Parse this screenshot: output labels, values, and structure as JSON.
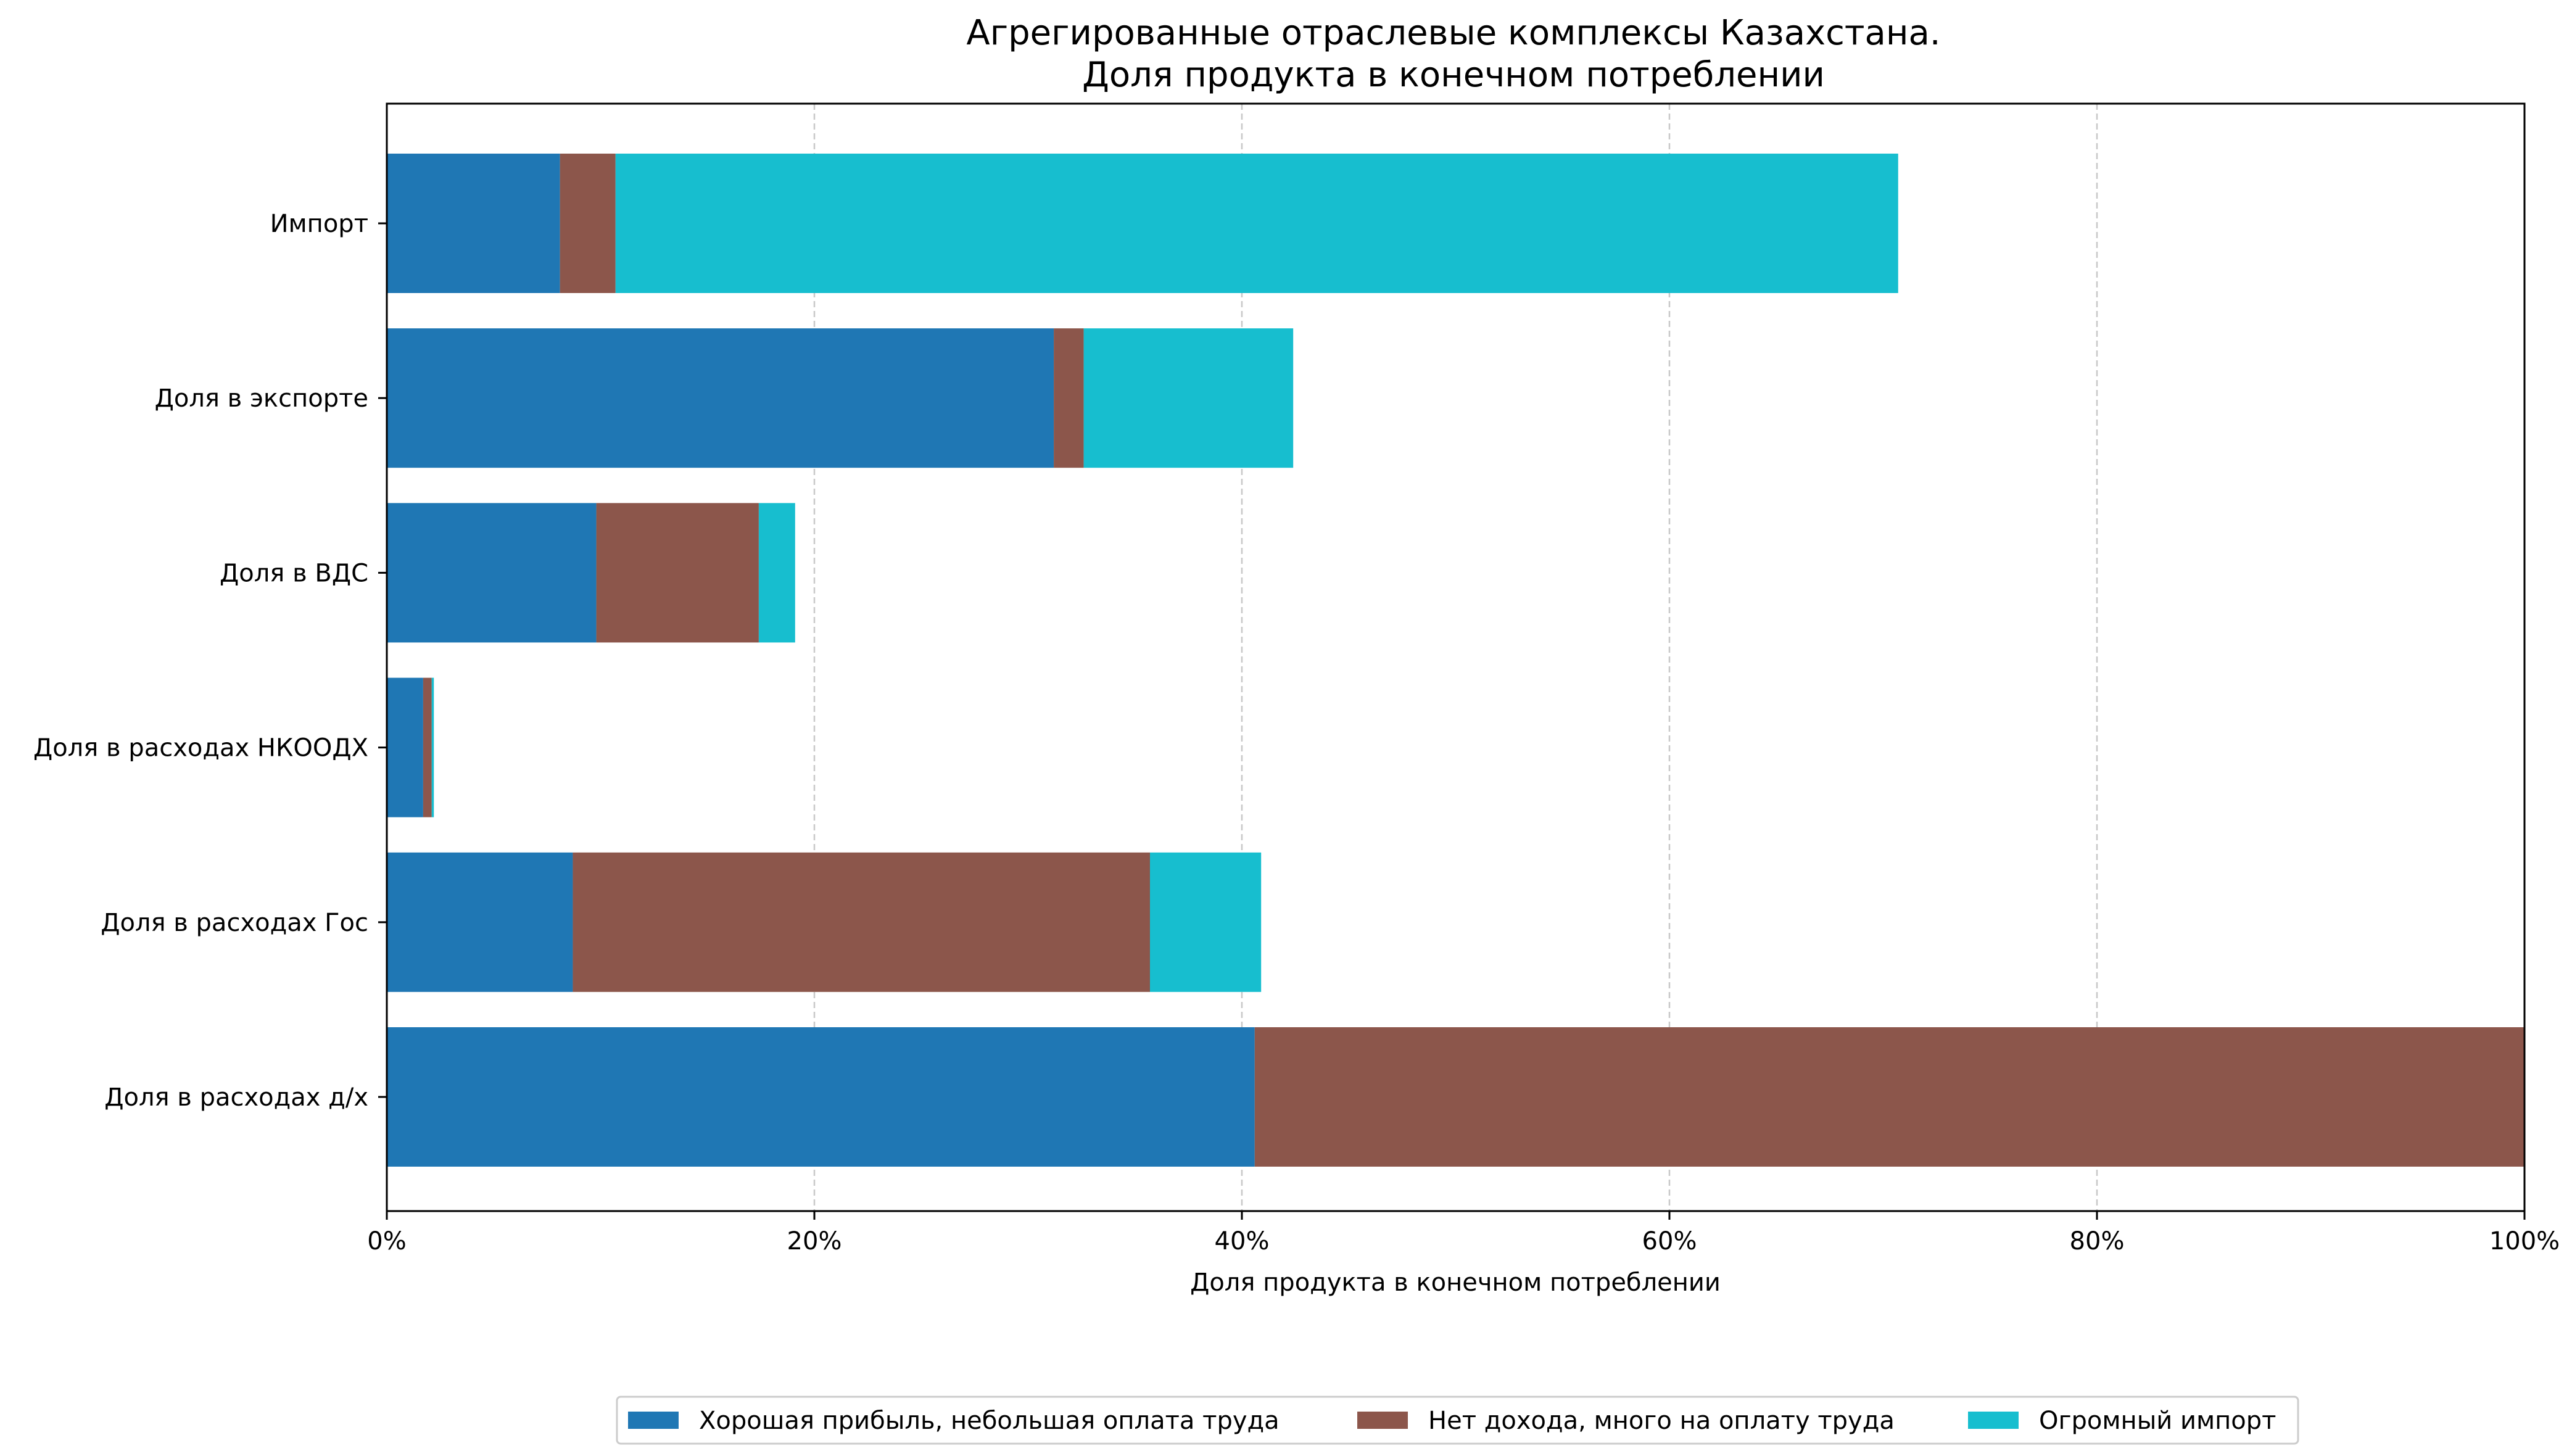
{
  "chart_data": {
    "type": "bar",
    "orientation": "horizontal",
    "stacked": true,
    "title_lines": [
      "Агрегированные отраслевые комплексы Казахстана.",
      "Доля продукта в конечном потреблении"
    ],
    "xlabel": "Доля продукта в конечном потреблении",
    "ylabel": "",
    "xlim": [
      0,
      100
    ],
    "x_ticks": [
      0,
      20,
      40,
      60,
      80,
      100
    ],
    "x_tick_labels": [
      "0%",
      "20%",
      "40%",
      "60%",
      "80%",
      "100%"
    ],
    "grid": "vertical dashed",
    "legend_position": "bottom-center",
    "categories": [
      "Импорт",
      "Доля в экспорте",
      "Доля в ВДС",
      "Доля в расходах НКООДХ",
      "Доля в расходах Гос",
      "Доля в расходах д/х"
    ],
    "series": [
      {
        "name": "Хорошая прибыль, небольшая оплата труда",
        "color": "#1f77b4",
        "values": [
          8.1,
          31.2,
          9.8,
          1.7,
          8.7,
          40.6
        ]
      },
      {
        "name": "Нет дохода, много на оплату труда",
        "color": "#8c564b",
        "values": [
          2.6,
          1.4,
          7.6,
          0.4,
          27.0,
          59.4
        ]
      },
      {
        "name": "Огромный импорт",
        "color": "#17becf",
        "values": [
          60.0,
          9.8,
          1.7,
          0.1,
          5.2,
          0.0
        ]
      }
    ]
  }
}
